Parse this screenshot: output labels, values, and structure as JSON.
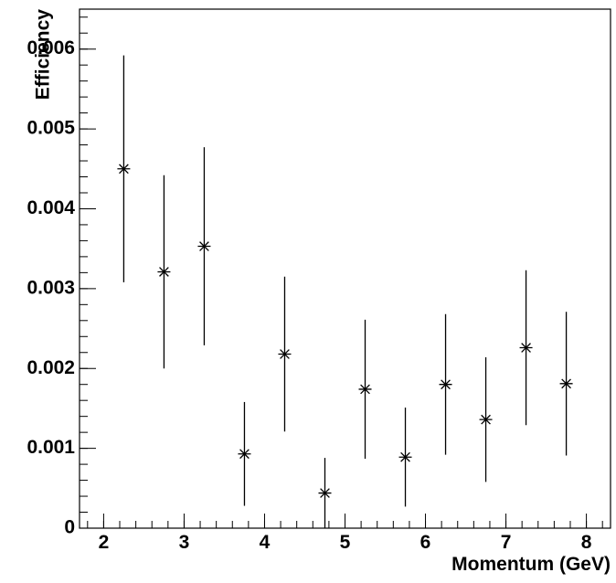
{
  "chart_data": {
    "type": "scatter",
    "xlabel": "Momentum (GeV)",
    "ylabel": "Efficiency",
    "xlim": [
      1.7,
      8.3
    ],
    "ylim": [
      0,
      0.0065
    ],
    "xticks": [
      2,
      3,
      4,
      5,
      6,
      7,
      8
    ],
    "yticks": [
      0,
      0.001,
      0.002,
      0.003,
      0.004,
      0.005,
      0.006
    ],
    "series": [
      {
        "color": "#000000",
        "x": [
          2.25,
          2.75,
          3.25,
          3.75,
          4.25,
          4.75,
          5.25,
          5.75,
          6.25,
          6.75,
          7.25,
          7.75
        ],
        "values": [
          0.0045,
          0.00321,
          0.00353,
          0.00093,
          0.00218,
          0.00044,
          0.00174,
          0.00089,
          0.0018,
          0.00136,
          0.00226,
          0.00181
        ],
        "errors": [
          0.00142,
          0.00121,
          0.00124,
          0.00065,
          0.00097,
          0.00044,
          0.00087,
          0.00062,
          0.00088,
          0.00078,
          0.00097,
          0.0009
        ]
      }
    ]
  }
}
